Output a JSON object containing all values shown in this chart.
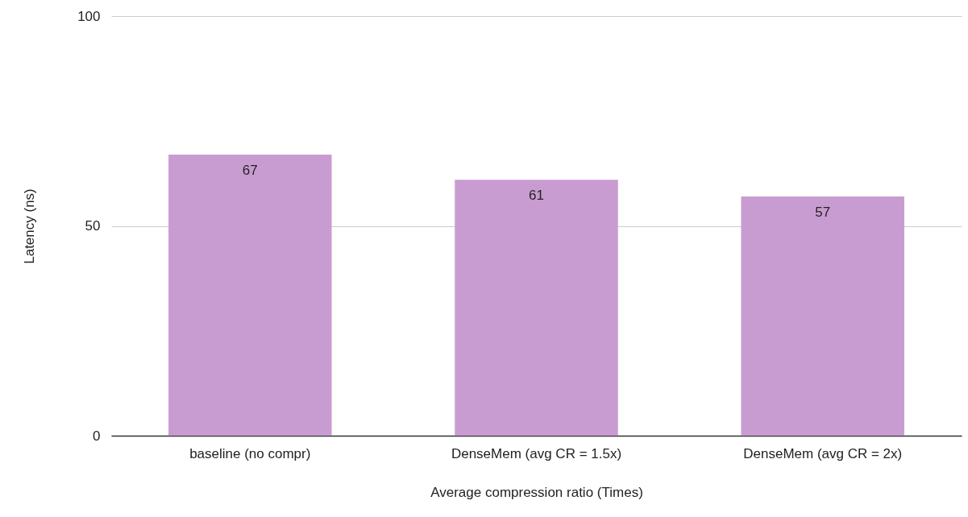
{
  "chart_data": {
    "type": "bar",
    "xlabel": "Average compression ratio (Times)",
    "ylabel": "Latency (ns)",
    "categories": [
      "baseline (no compr)",
      "DenseMem (avg CR = 1.5x)",
      "DenseMem (avg CR = 2x)"
    ],
    "values": [
      67,
      61,
      57
    ],
    "color": "#c99cd1",
    "ylim": [
      0,
      100
    ],
    "yticks": [
      0,
      50,
      100
    ],
    "grid": "y",
    "data_labels": true
  }
}
